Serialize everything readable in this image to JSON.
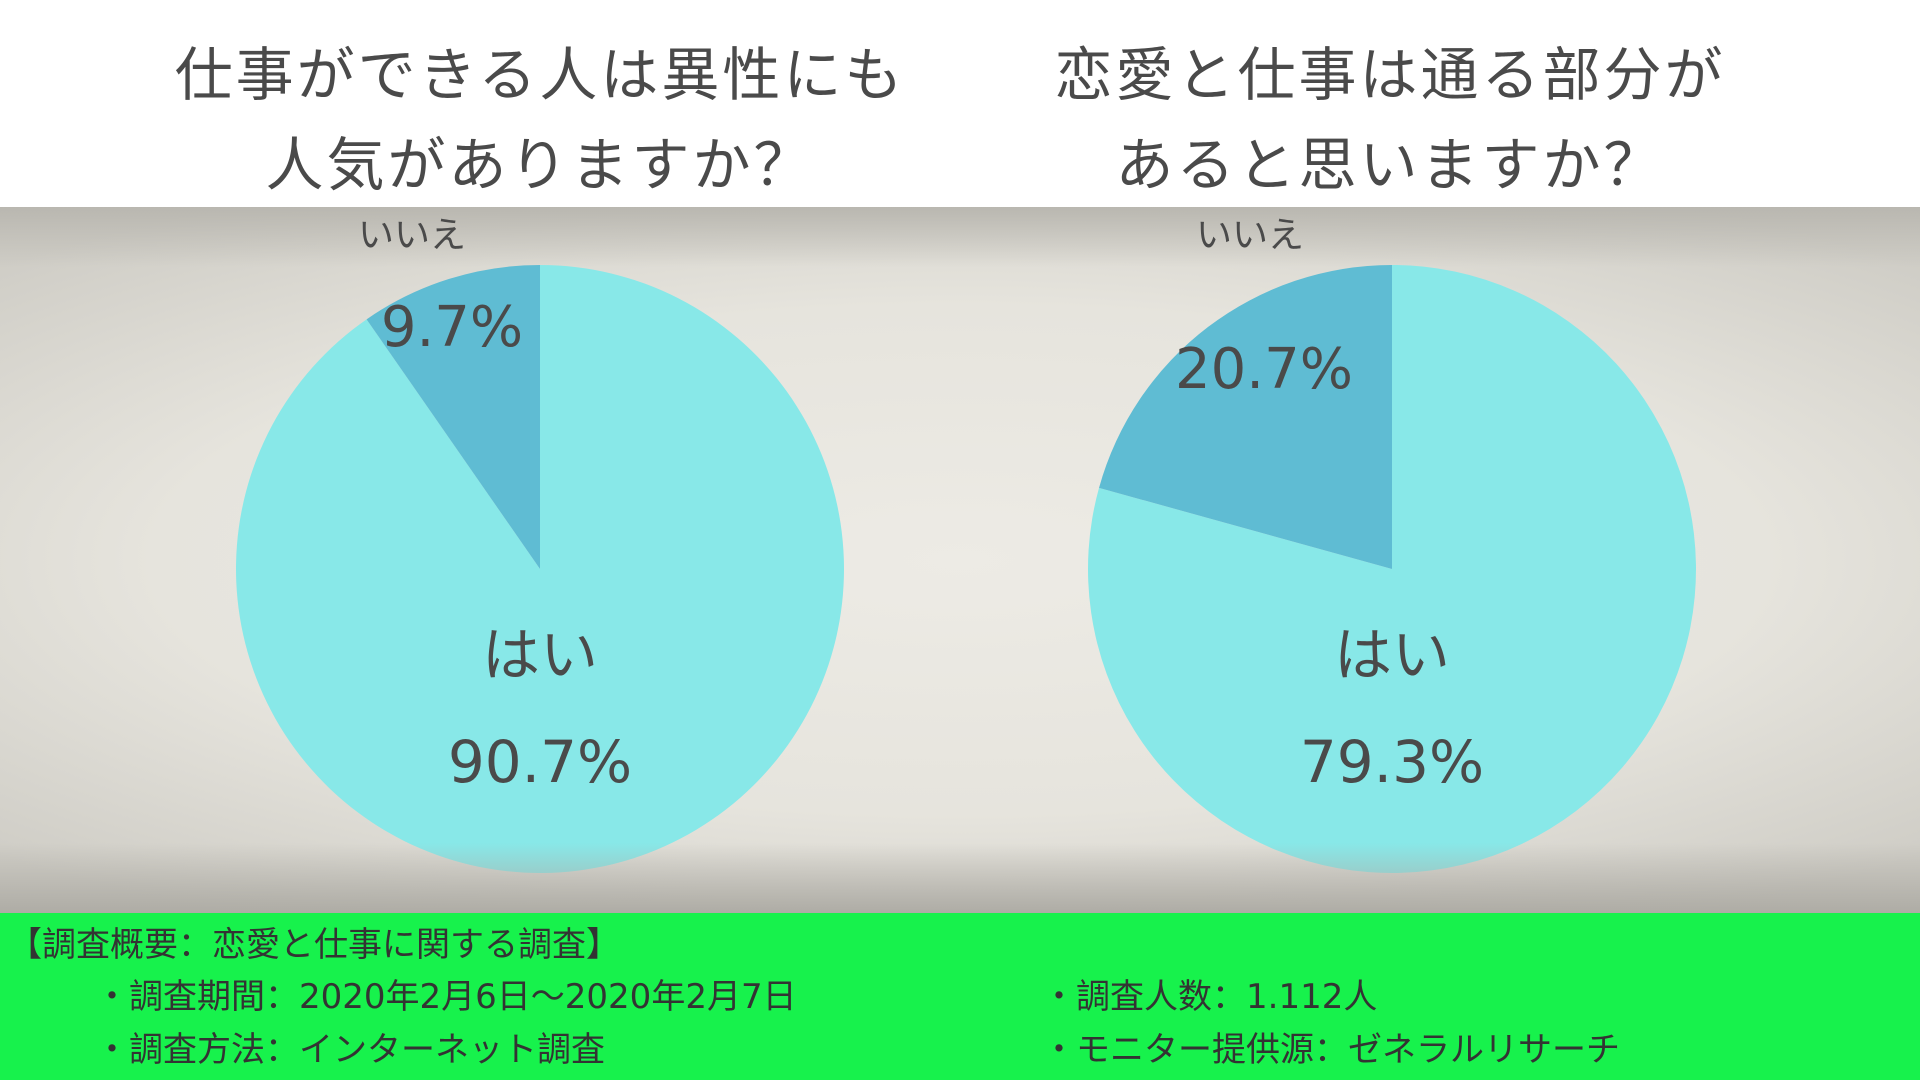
{
  "chart_data": [
    {
      "type": "pie",
      "title": "仕事ができる人は異性にも人気がありますか？",
      "title_lines": [
        "仕事ができる人は異性にも",
        "人気がありますか？"
      ],
      "slices": [
        {
          "label": "はい",
          "value": 90.7,
          "value_label": "90.7%",
          "color": "#88e8e8"
        },
        {
          "label": "いいえ",
          "value": 9.7,
          "value_label": "9.7%",
          "color": "#5fbcd3"
        }
      ]
    },
    {
      "type": "pie",
      "title": "恋愛と仕事は通る部分があると思いますか？",
      "title_lines": [
        "恋愛と仕事は通る部分が",
        "あると思いますか？"
      ],
      "slices": [
        {
          "label": "はい",
          "value": 79.3,
          "value_label": "79.3%",
          "color": "#88e8e8"
        },
        {
          "label": "いいえ",
          "value": 20.7,
          "value_label": "20.7%",
          "color": "#5fbcd3"
        }
      ]
    }
  ],
  "footer": {
    "heading": "【調査概要：恋愛と仕事に関する調査】",
    "period": "・調査期間：2020年2月6日～2020年2月7日",
    "method": "・調査方法：インターネット調査",
    "count": "・調査人数：1.112人",
    "provider": "・モニター提供源：ゼネラルリサーチ"
  },
  "colors": {
    "footer_bg": "#17f24c",
    "yes": "#88e8e8",
    "no": "#5fbcd3"
  }
}
